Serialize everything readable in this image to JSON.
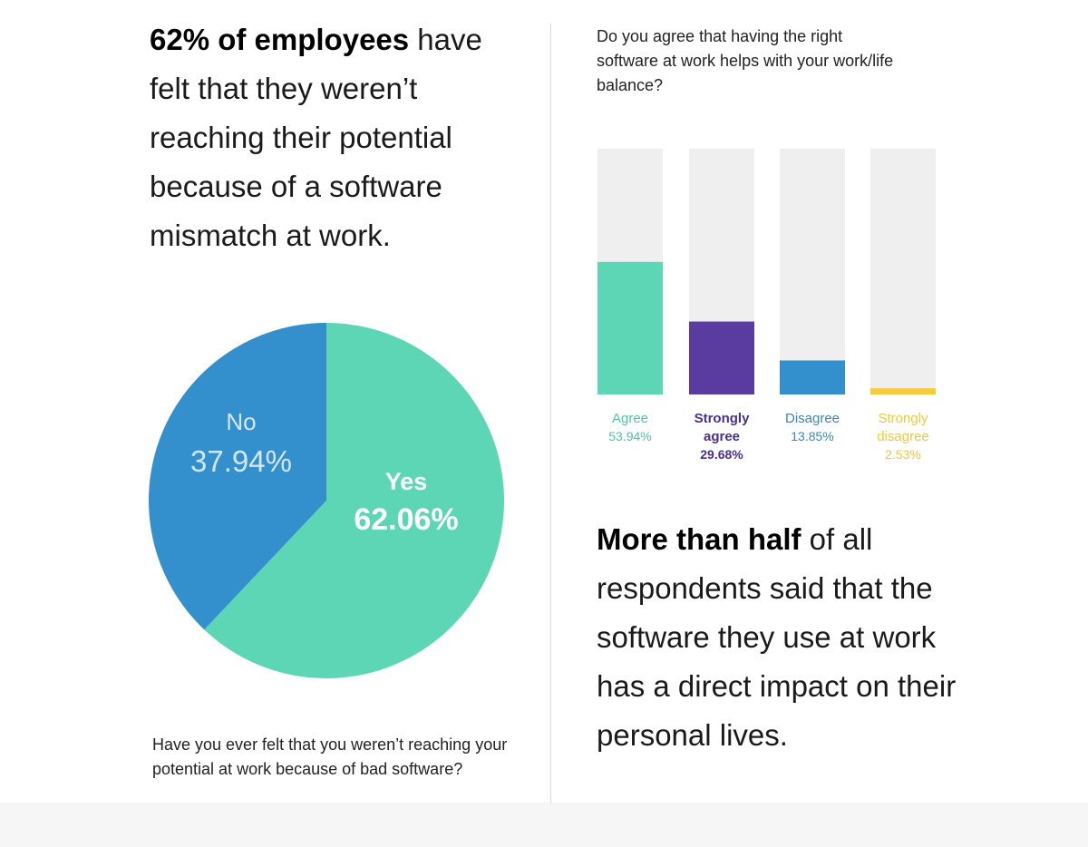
{
  "left": {
    "headline_bold": "62% of employees",
    "headline_rest": " have felt that they weren’t reaching their potential because of a software mismatch at work.",
    "question": "Have you ever felt that you weren’t reaching your potential at work because of bad software?"
  },
  "right": {
    "question": "Do you agree that having the right software at work helps with your work/life balance?",
    "headline_bold": "More than half",
    "headline_rest": " of all respondents said that the software they use at work has a direct impact on their personal lives."
  },
  "chart_data": [
    {
      "type": "pie",
      "title": "",
      "slices": [
        {
          "label": "Yes",
          "value": 62.06,
          "display": "62.06%",
          "color": "#5dd6b6"
        },
        {
          "label": "No",
          "value": 37.94,
          "display": "37.94%",
          "color": "#3390cc"
        }
      ]
    },
    {
      "type": "bar",
      "title": "",
      "ylim": [
        0,
        100
      ],
      "track_color": "#efefef",
      "categories": [
        {
          "label_lines": [
            "Agree"
          ],
          "value": 53.94,
          "display": "53.94%",
          "color": "#5dd6b6",
          "label_color": "#4fc4a5",
          "bold": false
        },
        {
          "label_lines": [
            "Strongly",
            "agree"
          ],
          "value": 29.68,
          "display": "29.68%",
          "color": "#5a3ba0",
          "label_color": "#4a2f8c",
          "bold": true
        },
        {
          "label_lines": [
            "Disagree"
          ],
          "value": 13.85,
          "display": "13.85%",
          "color": "#3390cc",
          "label_color": "#3a86bd",
          "bold": false
        },
        {
          "label_lines": [
            "Strongly",
            "disagree"
          ],
          "value": 2.53,
          "display": "2.53%",
          "color": "#f5cd3c",
          "label_color": "#f0c93a",
          "bold": false
        }
      ]
    }
  ]
}
